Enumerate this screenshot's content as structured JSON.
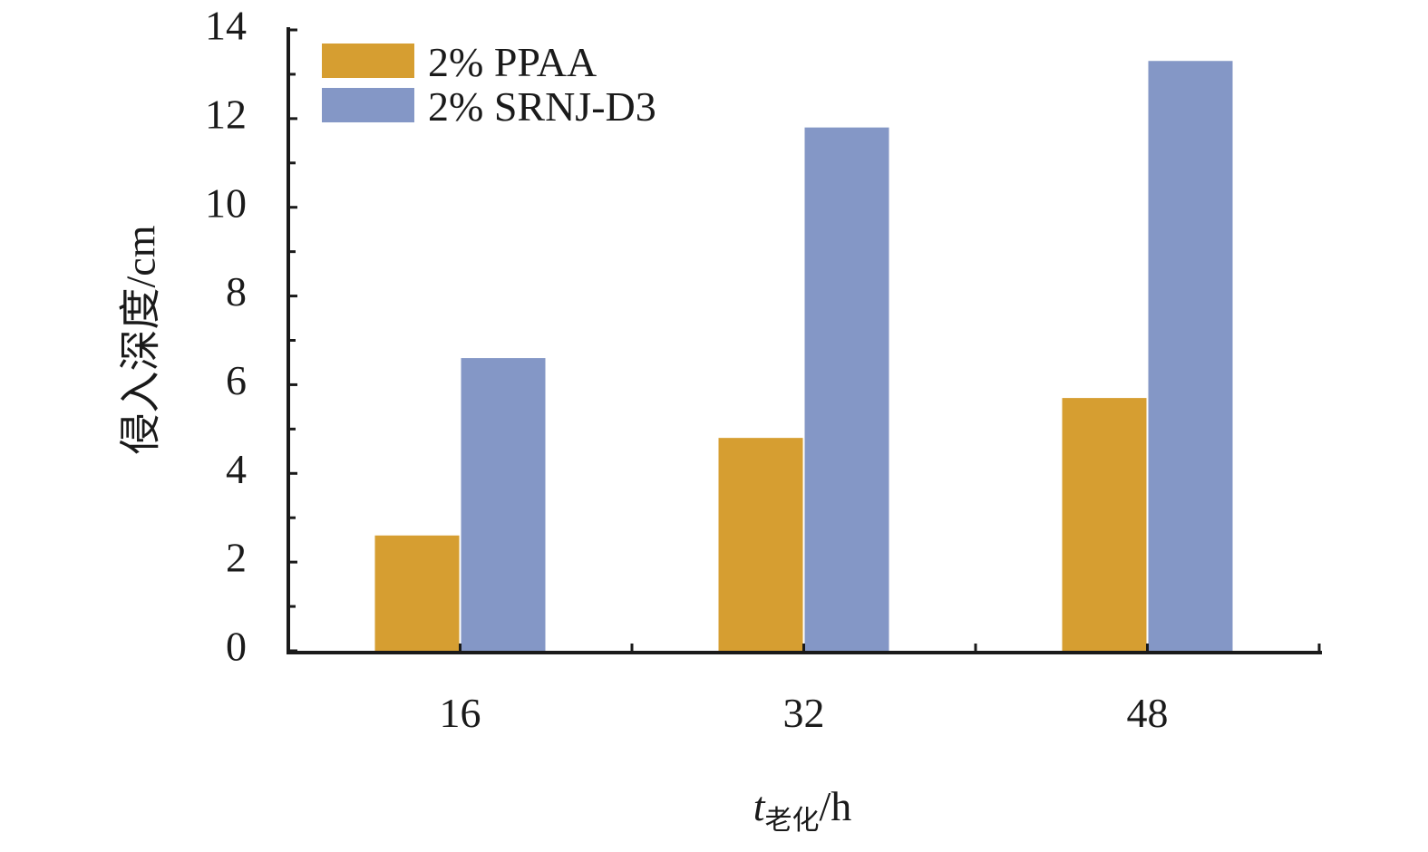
{
  "chart_data": {
    "type": "bar",
    "categories": [
      "16",
      "32",
      "48"
    ],
    "series": [
      {
        "name": "2% PPAA",
        "values": [
          2.6,
          4.8,
          5.7
        ],
        "color": "#D69E31"
      },
      {
        "name": "2% SRNJ-D3",
        "values": [
          6.6,
          11.8,
          13.3
        ],
        "color": "#8497C6"
      }
    ],
    "ylim": [
      0,
      14
    ],
    "yticks": [
      "0",
      "2",
      "4",
      "6",
      "8",
      "10",
      "12",
      "14"
    ],
    "ylabel": "侵入深度/cm",
    "xlabel": {
      "var": "t",
      "sub": "老化",
      "unit": "/h"
    },
    "legend_position": "top-left",
    "grid": false
  }
}
